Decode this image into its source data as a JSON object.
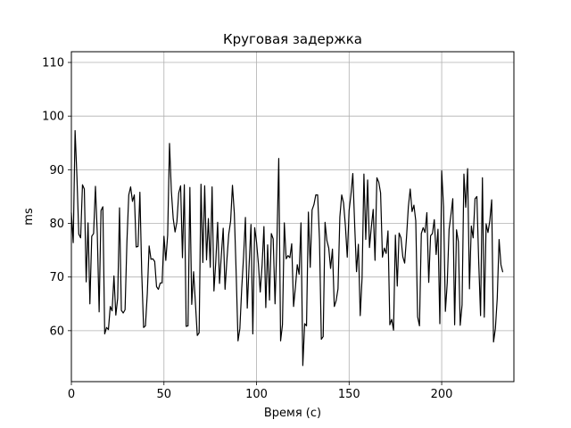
{
  "chart_data": {
    "type": "line",
    "title": "Круговая задержка",
    "xlabel": "Время (с)",
    "ylabel": "ms",
    "xlim": [
      0,
      239
    ],
    "ylim": [
      50.5,
      112
    ],
    "xticks": [
      0,
      50,
      100,
      150,
      200
    ],
    "yticks": [
      60,
      70,
      80,
      90,
      100,
      110
    ],
    "grid": true,
    "series": [
      {
        "line_color": "#000000",
        "x_start": 0,
        "x_step": 1,
        "values": [
          82.0,
          76.4,
          97.3,
          88.7,
          78.0,
          77.3,
          87.2,
          86.4,
          69.1,
          80.1,
          65.0,
          77.6,
          78.1,
          86.9,
          78.0,
          63.5,
          82.4,
          83.1,
          59.4,
          60.6,
          60.2,
          64.5,
          63.7,
          70.2,
          62.9,
          66.0,
          82.9,
          63.8,
          63.3,
          63.9,
          76.6,
          85.3,
          86.8,
          84.1,
          85.3,
          75.6,
          75.7,
          85.8,
          70.8,
          60.6,
          60.9,
          66.9,
          75.8,
          73.3,
          73.4,
          72.9,
          68.2,
          67.7,
          68.9,
          68.9,
          77.6,
          73.1,
          77.8,
          94.9,
          86.0,
          80.9,
          78.4,
          80.3,
          85.7,
          87.0,
          73.6,
          87.2,
          60.8,
          60.9,
          86.7,
          64.9,
          71.0,
          65.1,
          59.1,
          59.6,
          87.3,
          72.7,
          87.0,
          73.2,
          80.9,
          71.8,
          86.8,
          67.4,
          72.9,
          80.2,
          68.8,
          74.1,
          79.1,
          67.7,
          73.2,
          78.0,
          80.4,
          87.1,
          81.9,
          70.8,
          58.1,
          60.4,
          67.9,
          73.8,
          81.1,
          64.2,
          72.3,
          79.8,
          59.4,
          79.2,
          76.5,
          72.5,
          67.2,
          72.2,
          79.4,
          64.3,
          76.0,
          65.7,
          78.1,
          77.1,
          65.0,
          76.3,
          92.1,
          58.1,
          61.1,
          80.1,
          73.4,
          74.0,
          73.6,
          76.2,
          64.5,
          68.1,
          72.3,
          70.5,
          80.1,
          53.5,
          61.3,
          60.9,
          82.1,
          71.8,
          82.5,
          83.5,
          85.3,
          85.3,
          77.0,
          58.4,
          58.9,
          80.2,
          76.8,
          75.4,
          71.6,
          75.2,
          64.5,
          65.6,
          67.8,
          81.2,
          85.3,
          83.8,
          79.5,
          73.7,
          82.4,
          85.4,
          89.3,
          79.8,
          71.0,
          76.1,
          62.8,
          69.8,
          89.2,
          77.0,
          88.1,
          75.5,
          79.3,
          82.6,
          73.1,
          88.5,
          87.7,
          85.7,
          73.7,
          75.4,
          74.4,
          78.6,
          61.1,
          62.1,
          60.1,
          77.8,
          68.3,
          78.2,
          77.3,
          73.8,
          72.6,
          77.4,
          83.1,
          86.4,
          82.2,
          83.4,
          80.5,
          62.6,
          60.9,
          78.1,
          79.2,
          78.3,
          82.0,
          69.0,
          77.7,
          78.1,
          80.7,
          74.2,
          78.9,
          61.3,
          89.8,
          83.1,
          63.6,
          68.9,
          78.9,
          81.6,
          84.6,
          61.1,
          78.8,
          76.6,
          61.0,
          64.8,
          89.2,
          83.0,
          90.2,
          67.8,
          79.5,
          77.3,
          84.6,
          85.0,
          72.8,
          62.8,
          88.5,
          62.5,
          79.9,
          78.3,
          80.5,
          84.4,
          57.9,
          60.4,
          66.0,
          77.0,
          72.3,
          70.9
        ]
      }
    ]
  }
}
